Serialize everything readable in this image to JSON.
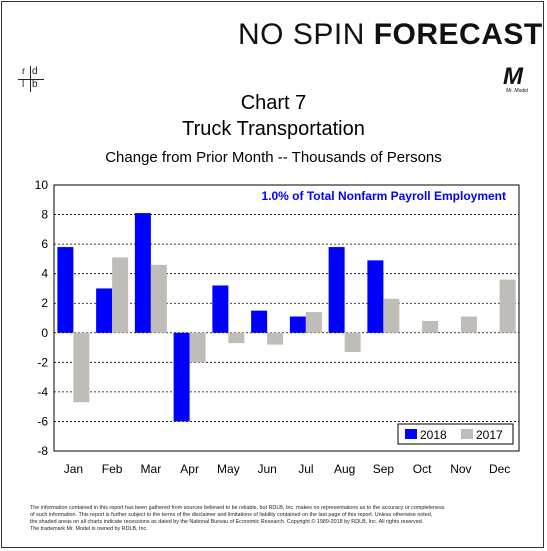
{
  "brand": {
    "no_spin": "NO SPIN ",
    "forecast": "FORECAST"
  },
  "logo": {
    "rdlb": [
      "r",
      "d",
      "l",
      "b"
    ],
    "mr_model": "M",
    "mr_model_caption": "Mr. Model"
  },
  "colors": {
    "series_2018": "#0000ff",
    "series_2017": "#c0bdb8",
    "annotation": "#0000ff"
  },
  "chart_data": {
    "type": "bar",
    "title": "Chart 7",
    "subtitle": "Truck Transportation",
    "ylabel": "Change from Prior Month -- Thousands of Persons",
    "annotation": "1.0% of Total Nonfarm Payroll Employment",
    "categories": [
      "Jan",
      "Feb",
      "Mar",
      "Apr",
      "May",
      "Jun",
      "Jul",
      "Aug",
      "Sep",
      "Oct",
      "Nov",
      "Dec"
    ],
    "series": [
      {
        "name": "2018",
        "values": [
          5.8,
          3.0,
          8.1,
          -6.0,
          3.2,
          1.5,
          1.1,
          5.8,
          4.9,
          null,
          null,
          null
        ]
      },
      {
        "name": "2017",
        "values": [
          -4.7,
          5.1,
          4.6,
          -2.0,
          -0.7,
          -0.8,
          1.4,
          -1.3,
          2.3,
          0.8,
          1.1,
          3.6
        ]
      }
    ],
    "ylim": [
      -8,
      10
    ],
    "yticks": [
      10,
      8,
      6,
      4,
      2,
      0,
      -2,
      -4,
      -6,
      -8
    ],
    "grid": true,
    "legend": "bottom-right"
  },
  "disclaimer": [
    "The information contained in this report has been gathered from sources believed to be reliable, but RDLB, Inc. makes no representations as to the accuracy or completeness",
    "of such information. This report is further subject to the terms of the disclaimer and limitations of liability contained on the last page of this report. Unless otherwise noted,",
    "the shaded areas on all charts indicate recessions as dated by the National Bureau of Economic Research. Copyright © 1989-2018 by RDLB, Inc. All rights reserved.",
    "The trademark Mr. Model is owned by RDLB, Inc."
  ]
}
